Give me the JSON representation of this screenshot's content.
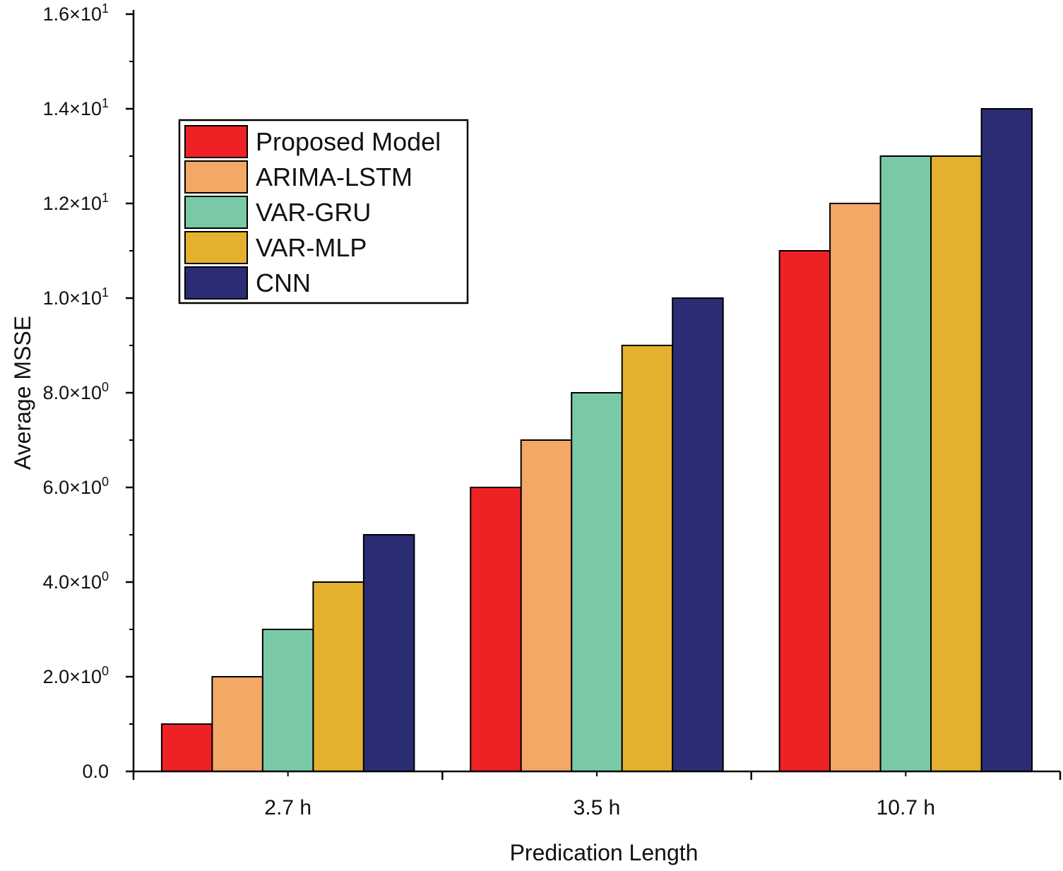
{
  "chart_data": {
    "type": "bar",
    "title": "",
    "xlabel": "Predication Length",
    "ylabel": "Average MSSE",
    "categories": [
      "2.7 h",
      "3.5 h",
      "10.7 h"
    ],
    "series": [
      {
        "name": "Proposed Model",
        "color": "#ee2124",
        "values": [
          1,
          6,
          11
        ]
      },
      {
        "name": "ARIMA-LSTM",
        "color": "#f3a866",
        "values": [
          2,
          7,
          12
        ]
      },
      {
        "name": "VAR-GRU",
        "color": "#79c9a6",
        "values": [
          3,
          8,
          13
        ]
      },
      {
        "name": "VAR-MLP",
        "color": "#e3b12e",
        "values": [
          4,
          9,
          13
        ]
      },
      {
        "name": "CNN",
        "color": "#2b2d74",
        "values": [
          5,
          10,
          14
        ]
      }
    ],
    "ylim": [
      0,
      16
    ],
    "yticks": [
      {
        "value": 0,
        "mantissa": "0.0",
        "exponent": ""
      },
      {
        "value": 2,
        "mantissa": "2.0×10",
        "exponent": "0"
      },
      {
        "value": 4,
        "mantissa": "4.0×10",
        "exponent": "0"
      },
      {
        "value": 6,
        "mantissa": "6.0×10",
        "exponent": "0"
      },
      {
        "value": 8,
        "mantissa": "8.0×10",
        "exponent": "0"
      },
      {
        "value": 10,
        "mantissa": "1.0×10",
        "exponent": "1"
      },
      {
        "value": 12,
        "mantissa": "1.2×10",
        "exponent": "1"
      },
      {
        "value": 14,
        "mantissa": "1.4×10",
        "exponent": "1"
      },
      {
        "value": 16,
        "mantissa": "1.6×10",
        "exponent": "1"
      }
    ],
    "yminor_step": 1,
    "grid": false,
    "legend_position": "upper-left"
  }
}
